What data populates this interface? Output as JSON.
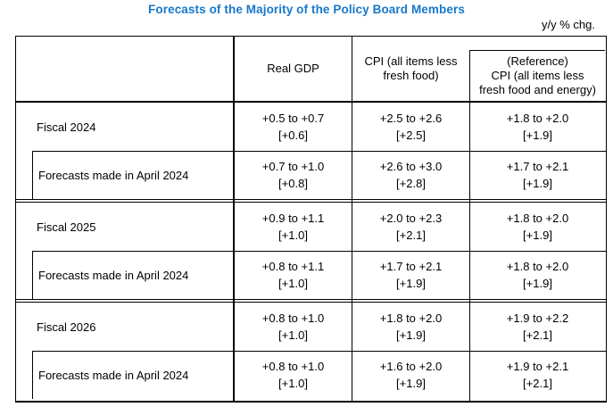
{
  "title": "Forecasts of the Majority of the Policy Board Members",
  "unit_note": "y/y % chg.",
  "colors": {
    "title_blue": "#1778c9",
    "text": "#000000",
    "border": "#000000",
    "background": "#ffffff"
  },
  "table": {
    "header": {
      "fiscal_col": "",
      "gdp": "Real GDP",
      "cpi_lines": [
        "CPI (all items less",
        "fresh food)"
      ],
      "ref_lines": [
        "(Reference)",
        "CPI (all items less",
        "fresh food and energy)"
      ]
    },
    "groups": [
      {
        "current": {
          "label": "Fiscal 2024",
          "gdp_range": "+0.5 to +0.7",
          "gdp_median": "[+0.6]",
          "cpi_range": "+2.5 to +2.6",
          "cpi_median": "[+2.5]",
          "ref_range": "+1.8 to +2.0",
          "ref_median": "[+1.9]"
        },
        "april": {
          "label": "Forecasts made in April 2024",
          "gdp_range": "+0.7 to +1.0",
          "gdp_median": "[+0.8]",
          "cpi_range": "+2.6 to +3.0",
          "cpi_median": "[+2.8]",
          "ref_range": "+1.7 to +2.1",
          "ref_median": "[+1.9]"
        }
      },
      {
        "current": {
          "label": "Fiscal 2025",
          "gdp_range": "+0.9 to +1.1",
          "gdp_median": "[+1.0]",
          "cpi_range": "+2.0 to +2.3",
          "cpi_median": "[+2.1]",
          "ref_range": "+1.8 to +2.0",
          "ref_median": "[+1.9]"
        },
        "april": {
          "label": "Forecasts made in April 2024",
          "gdp_range": "+0.8 to +1.1",
          "gdp_median": "[+1.0]",
          "cpi_range": "+1.7 to +2.1",
          "cpi_median": "[+1.9]",
          "ref_range": "+1.8 to +2.0",
          "ref_median": "[+1.9]"
        }
      },
      {
        "current": {
          "label": "Fiscal 2026",
          "gdp_range": "+0.8 to +1.0",
          "gdp_median": "[+1.0]",
          "cpi_range": "+1.8 to +2.0",
          "cpi_median": "[+1.9]",
          "ref_range": "+1.9 to +2.2",
          "ref_median": "[+2.1]"
        },
        "april": {
          "label": "Forecasts made in April 2024",
          "gdp_range": "+0.8 to +1.0",
          "gdp_median": "[+1.0]",
          "cpi_range": "+1.6 to +2.0",
          "cpi_median": "[+1.9]",
          "ref_range": "+1.9 to +2.1",
          "ref_median": "[+2.1]"
        }
      }
    ]
  }
}
